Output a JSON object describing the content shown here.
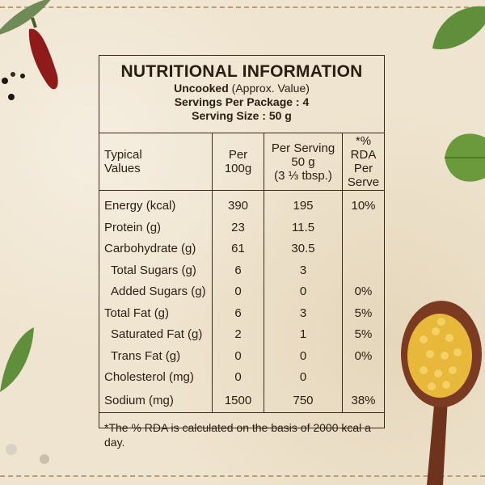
{
  "header": {
    "title": "NUTRITIONAL INFORMATION",
    "line1_bold": "Uncooked",
    "line1_rest": " (Approx. Value)",
    "servings_per_package": "Servings Per Package : 4",
    "serving_size": "Serving Size : 50 g"
  },
  "columns": {
    "c1": [
      "Typical",
      "Values"
    ],
    "c2": [
      "Per",
      "100g"
    ],
    "c3": [
      "Per Serving",
      "50 g",
      "(3 ⅓ tbsp.)"
    ],
    "c4": [
      "*% RDA",
      "Per Serve"
    ]
  },
  "rows": [
    {
      "name": "Energy (kcal)",
      "per100": "390",
      "perServing": "195",
      "rda": "10%"
    },
    {
      "name": "Protein (g)",
      "per100": "23",
      "perServing": "11.5",
      "rda": ""
    },
    {
      "name": "Carbohydrate (g)",
      "per100": "61",
      "perServing": "30.5",
      "rda": ""
    },
    {
      "name": "Total Sugars (g)",
      "per100": "6",
      "perServing": "3",
      "rda": ""
    },
    {
      "name": "Added Sugars (g)",
      "per100": "0",
      "perServing": "0",
      "rda": "0%"
    },
    {
      "name": "Total Fat (g)",
      "per100": "6",
      "perServing": "3",
      "rda": "5%"
    },
    {
      "name": "Saturated Fat (g)",
      "per100": "2",
      "perServing": "1",
      "rda": "5%"
    },
    {
      "name": "Trans Fat (g)",
      "per100": "0",
      "perServing": "0",
      "rda": "0%"
    },
    {
      "name": "Cholesterol (mg)",
      "per100": "0",
      "perServing": "0",
      "rda": ""
    },
    {
      "name": "Sodium (mg)",
      "per100": "1500",
      "perServing": "750",
      "rda": "38%"
    }
  ],
  "footnote": "*The % RDA is calculated on the basis of 2000 kcal a day.",
  "colors": {
    "ink": "#2a1d12",
    "paper": "#efe4cf",
    "spoon": "#7a3b22",
    "lentil": "#e8b83a",
    "leaf": "#5f8f3a",
    "chili": "#8f1a1a"
  }
}
